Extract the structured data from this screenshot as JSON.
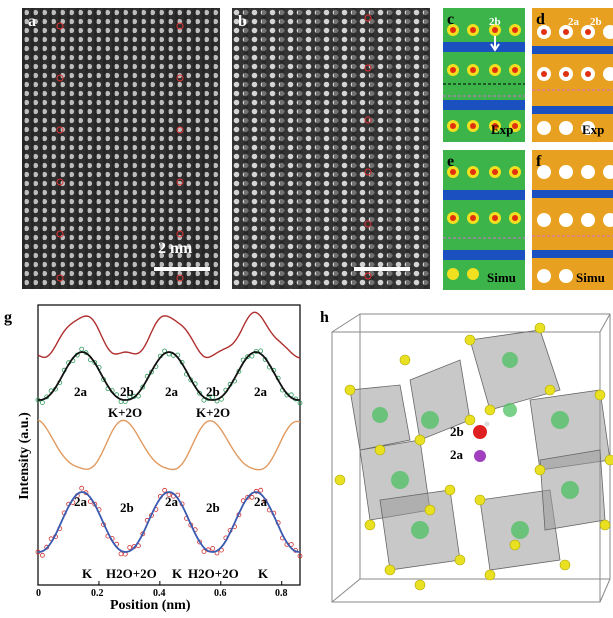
{
  "panels": {
    "a": {
      "label": "a",
      "scalebar": "2 nm"
    },
    "b": {
      "label": "b"
    },
    "c": {
      "label": "c",
      "marker": "2b",
      "tag": "Exp"
    },
    "d": {
      "label": "d",
      "markers": [
        "2a",
        "2b"
      ],
      "tag": "Exp"
    },
    "e": {
      "label": "e",
      "tag": "Simu"
    },
    "f": {
      "label": "f",
      "tag": "Simu"
    },
    "g": {
      "label": "g"
    },
    "h": {
      "label": "h",
      "sites": [
        "2b",
        "2a"
      ]
    }
  },
  "chart_data": {
    "type": "line",
    "xlabel": "Position (nm)",
    "ylabel": "Intensity (a.u.)",
    "xlim": [
      0,
      0.86
    ],
    "xticks": [
      "0",
      "0.2",
      "0.4",
      "0.6",
      "0.8"
    ],
    "upper_labels": {
      "sites": [
        "2a",
        "2b",
        "2a",
        "2b",
        "2a"
      ],
      "species": [
        "K+2O",
        "K+2O"
      ]
    },
    "lower_labels": {
      "sites": [
        "2a",
        "2b",
        "2a",
        "2b",
        "2a"
      ],
      "species": [
        "K",
        "H2O+2O",
        "K",
        "H2O+2O",
        "K"
      ]
    },
    "colors": {
      "red": "#b03030",
      "green": "#2a9a5a",
      "black": "#111111",
      "orange": "#e09a60",
      "blue": "#3a5ab0",
      "redpts": "#d03030"
    }
  },
  "colors": {
    "stem_bg": "#3a3a3a",
    "map_green": "#3cb44a",
    "map_yellow": "#f0e020",
    "map_red": "#e03010",
    "map_blue": "#1a50c0"
  }
}
